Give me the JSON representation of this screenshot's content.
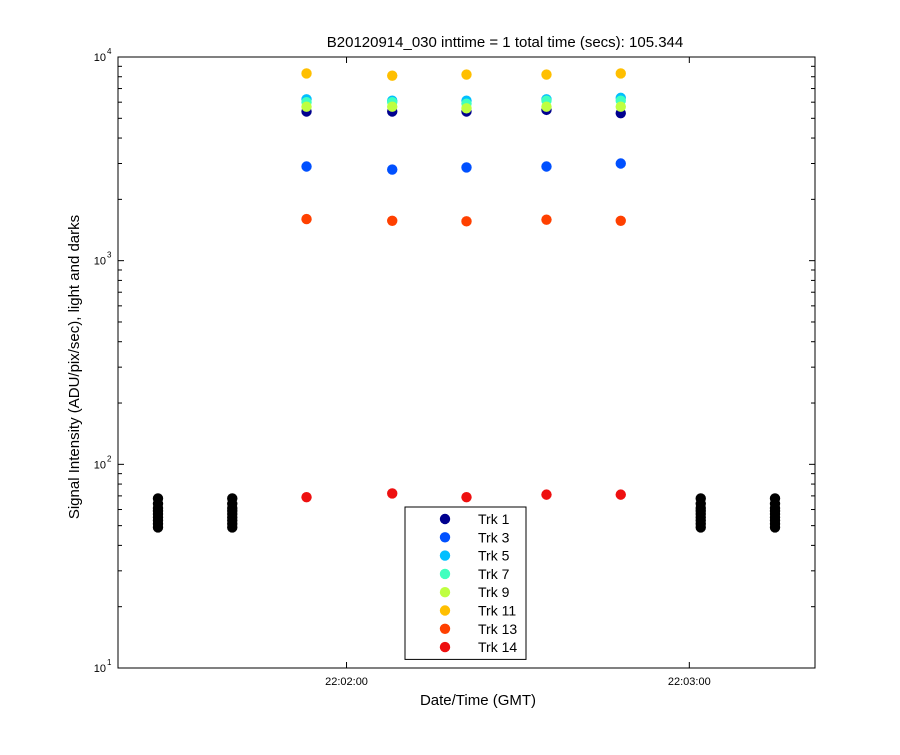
{
  "chart_data": {
    "type": "scatter",
    "title": "B20120914_030 inttime = 1 total time (secs): 105.344",
    "xlabel": "Date/Time (GMT)",
    "ylabel": "Signal Intensity (ADU/pix/sec), light and darks",
    "y_scale": "log",
    "ylim": [
      10,
      10000
    ],
    "xlim": [
      "22:01:20",
      "22:03:22"
    ],
    "y_tick_labels": [
      {
        "value": 10,
        "base": "10",
        "exp": "1"
      },
      {
        "value": 100,
        "base": "10",
        "exp": "2"
      },
      {
        "value": 1000,
        "base": "10",
        "exp": "3"
      },
      {
        "value": 10000,
        "base": "10",
        "exp": "4"
      }
    ],
    "x_ticks": [
      "22:02:00",
      "22:03:00"
    ],
    "light_times": [
      "22:01:53",
      "22:02:08",
      "22:02:21",
      "22:02:35",
      "22:02:48"
    ],
    "series": [
      {
        "name": "Trk 1",
        "color": "#00008f",
        "values": [
          5400,
          5400,
          5400,
          5500,
          5300
        ]
      },
      {
        "name": "Trk 3",
        "color": "#0050ff",
        "values": [
          2900,
          2800,
          2870,
          2900,
          3000
        ]
      },
      {
        "name": "Trk 5",
        "color": "#00bfff",
        "values": [
          6200,
          6100,
          6100,
          6200,
          6300
        ]
      },
      {
        "name": "Trk 7",
        "color": "#40ffbf",
        "values": [
          6000,
          6000,
          5900,
          6100,
          6100
        ]
      },
      {
        "name": "Trk 9",
        "color": "#bfff40",
        "values": [
          5700,
          5700,
          5600,
          5700,
          5700
        ]
      },
      {
        "name": "Trk 11",
        "color": "#ffbf00",
        "values": [
          8300,
          8100,
          8200,
          8200,
          8300
        ]
      },
      {
        "name": "Trk 13",
        "color": "#ff4000",
        "values": [
          1600,
          1570,
          1560,
          1590,
          1570
        ]
      },
      {
        "name": "Trk 14",
        "color": "#ee1010",
        "values": [
          69,
          72,
          69,
          71,
          71
        ]
      }
    ],
    "darks": {
      "color": "#000000",
      "times": [
        "22:01:27",
        "22:01:40",
        "22:03:02",
        "22:03:15"
      ],
      "values": [
        49,
        51,
        53,
        55,
        57,
        59,
        61,
        64,
        68
      ]
    },
    "legend_position": "bottom-center",
    "grid": false
  }
}
